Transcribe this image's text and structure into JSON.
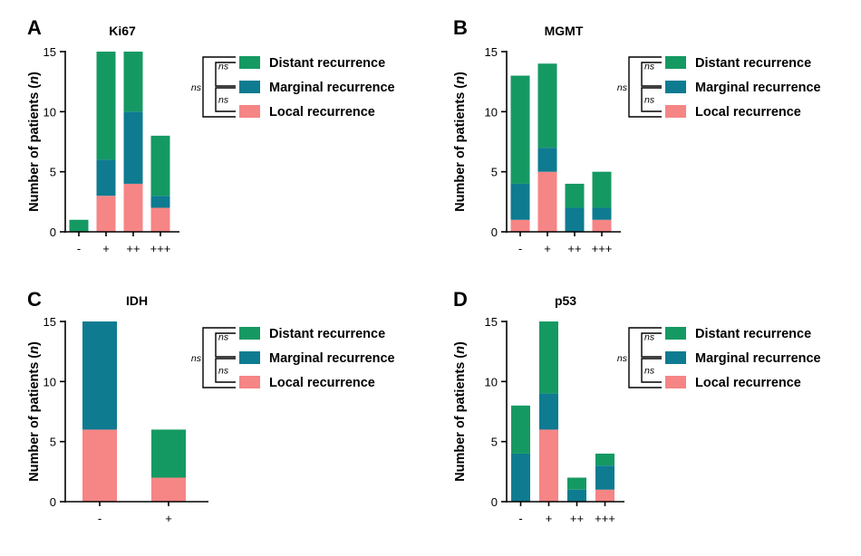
{
  "colors": {
    "distant": "#159963",
    "marginal": "#0E7B91",
    "local": "#F68585"
  },
  "legend": {
    "items": [
      {
        "key": "distant",
        "label": "Distant recurrence"
      },
      {
        "key": "marginal",
        "label": "Marginal recurrence"
      },
      {
        "key": "local",
        "label": "Local recurrence"
      }
    ],
    "ns_label": "ns"
  },
  "ylabel_prefix": "Number of patients (",
  "ylabel_var": "n",
  "ylabel_suffix": ")",
  "chart_data": [
    {
      "type": "bar",
      "stacked": true,
      "panel": "A",
      "title": "Ki67",
      "categories": [
        "-",
        "+",
        "++",
        "+++"
      ],
      "ylim": [
        0,
        15
      ],
      "yticks": [
        0,
        5,
        10,
        15
      ],
      "series": [
        {
          "name": "Local recurrence",
          "key": "local",
          "values": [
            0,
            3,
            4,
            2
          ]
        },
        {
          "name": "Marginal recurrence",
          "key": "marginal",
          "values": [
            0,
            3,
            6,
            1
          ]
        },
        {
          "name": "Distant recurrence",
          "key": "distant",
          "values": [
            1,
            9,
            5,
            5
          ]
        }
      ]
    },
    {
      "type": "bar",
      "stacked": true,
      "panel": "B",
      "title": "MGMT",
      "categories": [
        "-",
        "+",
        "++",
        "+++"
      ],
      "ylim": [
        0,
        15
      ],
      "yticks": [
        0,
        5,
        10,
        15
      ],
      "series": [
        {
          "name": "Local recurrence",
          "key": "local",
          "values": [
            1,
            5,
            0,
            1
          ]
        },
        {
          "name": "Marginal recurrence",
          "key": "marginal",
          "values": [
            3,
            2,
            2,
            1
          ]
        },
        {
          "name": "Distant recurrence",
          "key": "distant",
          "values": [
            9,
            7,
            2,
            3
          ]
        }
      ]
    },
    {
      "type": "bar",
      "stacked": true,
      "panel": "C",
      "title": "IDH",
      "categories": [
        "-",
        "+"
      ],
      "ylim": [
        0,
        15
      ],
      "yticks": [
        0,
        5,
        10,
        15
      ],
      "series": [
        {
          "name": "Local recurrence",
          "key": "local",
          "values": [
            6,
            2
          ]
        },
        {
          "name": "Marginal recurrence",
          "key": "marginal",
          "values": [
            9,
            0
          ]
        },
        {
          "name": "Distant recurrence",
          "key": "distant",
          "values": [
            0,
            4
          ]
        }
      ]
    },
    {
      "type": "bar",
      "stacked": true,
      "panel": "D",
      "title": "p53",
      "categories": [
        "-",
        "+",
        "++",
        "+++"
      ],
      "ylim": [
        0,
        15
      ],
      "yticks": [
        0,
        5,
        10,
        15
      ],
      "series": [
        {
          "name": "Local recurrence",
          "key": "local",
          "values": [
            0,
            6,
            0,
            1
          ]
        },
        {
          "name": "Marginal recurrence",
          "key": "marginal",
          "values": [
            4,
            3,
            1,
            2
          ]
        },
        {
          "name": "Distant recurrence",
          "key": "distant",
          "values": [
            4,
            6,
            1,
            1
          ]
        }
      ]
    }
  ]
}
